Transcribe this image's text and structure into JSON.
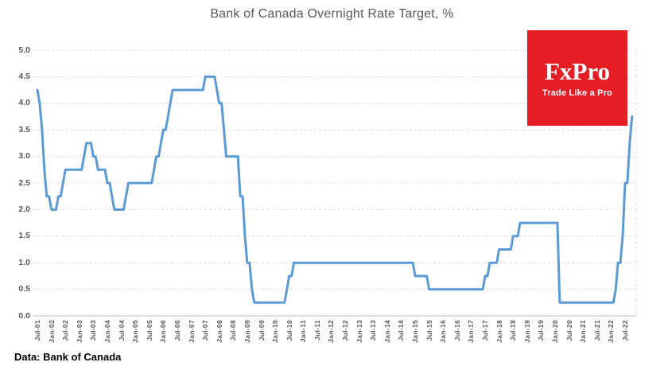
{
  "title": "Bank of Canada Overnight Rate Target, %",
  "source_note": "Data: Bank of Canada",
  "logo": {
    "wordmark": "FxPro",
    "tagline": "Trade Like a Pro",
    "bg_color": "#E71D25",
    "text_color": "#FFFFFF"
  },
  "chart_data": {
    "type": "line",
    "title": "Bank of Canada Overnight Rate Target, %",
    "xlabel": "",
    "ylabel": "",
    "ylim": [
      0.0,
      5.0
    ],
    "y_step": 0.5,
    "grid": "horizontal dashed",
    "legend": "none",
    "line_color": "#5B9BD5",
    "grid_color": "#DCDCDC",
    "axis_color": "#BFBFBF",
    "tick_label_color": "#595959",
    "y_tick_labels": [
      "5.0",
      "4.5",
      "4.0",
      "3.5",
      "3.0",
      "2.5",
      "2.0",
      "1.5",
      "1.0",
      "0.5",
      "0.0"
    ],
    "x_tick_labels": [
      "Jul-01",
      "Jan-02",
      "Jul-02",
      "Jan-03",
      "Jul-03",
      "Jan-04",
      "Jul-04",
      "Jan-05",
      "Jul-05",
      "Jan-06",
      "Jul-06",
      "Jan-07",
      "Jul-07",
      "Jan-08",
      "Jul-08",
      "Jan-09",
      "Jul-09",
      "Jan-10",
      "Jul-10",
      "Jan-11",
      "Jul-11",
      "Jan-12",
      "Jul-12",
      "Jan-13",
      "Jul-13",
      "Jan-14",
      "Jul-14",
      "Jan-15",
      "Jul-15",
      "Jan-16",
      "Jul-16",
      "Jan-17",
      "Jul-17",
      "Jan-18",
      "Jul-18",
      "Jan-19",
      "Jul-19",
      "Jan-20",
      "Jul-20",
      "Jan-21",
      "Jul-21",
      "Jan-22",
      "Jul-22"
    ],
    "series": [
      {
        "name": "BoC Overnight Rate Target (%)",
        "frequency": "monthly",
        "start": "Jul-2001",
        "end": "Oct-2022",
        "values": [
          4.25,
          4.0,
          3.5,
          2.75,
          2.25,
          2.25,
          2.0,
          2.0,
          2.0,
          2.25,
          2.25,
          2.5,
          2.75,
          2.75,
          2.75,
          2.75,
          2.75,
          2.75,
          2.75,
          2.75,
          3.0,
          3.25,
          3.25,
          3.25,
          3.0,
          3.0,
          2.75,
          2.75,
          2.75,
          2.75,
          2.5,
          2.5,
          2.25,
          2.0,
          2.0,
          2.0,
          2.0,
          2.0,
          2.25,
          2.5,
          2.5,
          2.5,
          2.5,
          2.5,
          2.5,
          2.5,
          2.5,
          2.5,
          2.5,
          2.5,
          2.75,
          3.0,
          3.0,
          3.25,
          3.5,
          3.5,
          3.75,
          4.0,
          4.25,
          4.25,
          4.25,
          4.25,
          4.25,
          4.25,
          4.25,
          4.25,
          4.25,
          4.25,
          4.25,
          4.25,
          4.25,
          4.25,
          4.5,
          4.5,
          4.5,
          4.5,
          4.5,
          4.25,
          4.0,
          4.0,
          3.5,
          3.0,
          3.0,
          3.0,
          3.0,
          3.0,
          3.0,
          2.25,
          2.25,
          1.5,
          1.0,
          1.0,
          0.5,
          0.25,
          0.25,
          0.25,
          0.25,
          0.25,
          0.25,
          0.25,
          0.25,
          0.25,
          0.25,
          0.25,
          0.25,
          0.25,
          0.25,
          0.5,
          0.75,
          0.75,
          1.0,
          1.0,
          1.0,
          1.0,
          1.0,
          1.0,
          1.0,
          1.0,
          1.0,
          1.0,
          1.0,
          1.0,
          1.0,
          1.0,
          1.0,
          1.0,
          1.0,
          1.0,
          1.0,
          1.0,
          1.0,
          1.0,
          1.0,
          1.0,
          1.0,
          1.0,
          1.0,
          1.0,
          1.0,
          1.0,
          1.0,
          1.0,
          1.0,
          1.0,
          1.0,
          1.0,
          1.0,
          1.0,
          1.0,
          1.0,
          1.0,
          1.0,
          1.0,
          1.0,
          1.0,
          1.0,
          1.0,
          1.0,
          1.0,
          1.0,
          1.0,
          1.0,
          0.75,
          0.75,
          0.75,
          0.75,
          0.75,
          0.75,
          0.5,
          0.5,
          0.5,
          0.5,
          0.5,
          0.5,
          0.5,
          0.5,
          0.5,
          0.5,
          0.5,
          0.5,
          0.5,
          0.5,
          0.5,
          0.5,
          0.5,
          0.5,
          0.5,
          0.5,
          0.5,
          0.5,
          0.5,
          0.5,
          0.75,
          0.75,
          1.0,
          1.0,
          1.0,
          1.0,
          1.25,
          1.25,
          1.25,
          1.25,
          1.25,
          1.25,
          1.5,
          1.5,
          1.5,
          1.75,
          1.75,
          1.75,
          1.75,
          1.75,
          1.75,
          1.75,
          1.75,
          1.75,
          1.75,
          1.75,
          1.75,
          1.75,
          1.75,
          1.75,
          1.75,
          1.75,
          0.25,
          0.25,
          0.25,
          0.25,
          0.25,
          0.25,
          0.25,
          0.25,
          0.25,
          0.25,
          0.25,
          0.25,
          0.25,
          0.25,
          0.25,
          0.25,
          0.25,
          0.25,
          0.25,
          0.25,
          0.25,
          0.25,
          0.25,
          0.25,
          0.5,
          1.0,
          1.0,
          1.5,
          2.5,
          2.5,
          3.25,
          3.75
        ]
      }
    ]
  }
}
